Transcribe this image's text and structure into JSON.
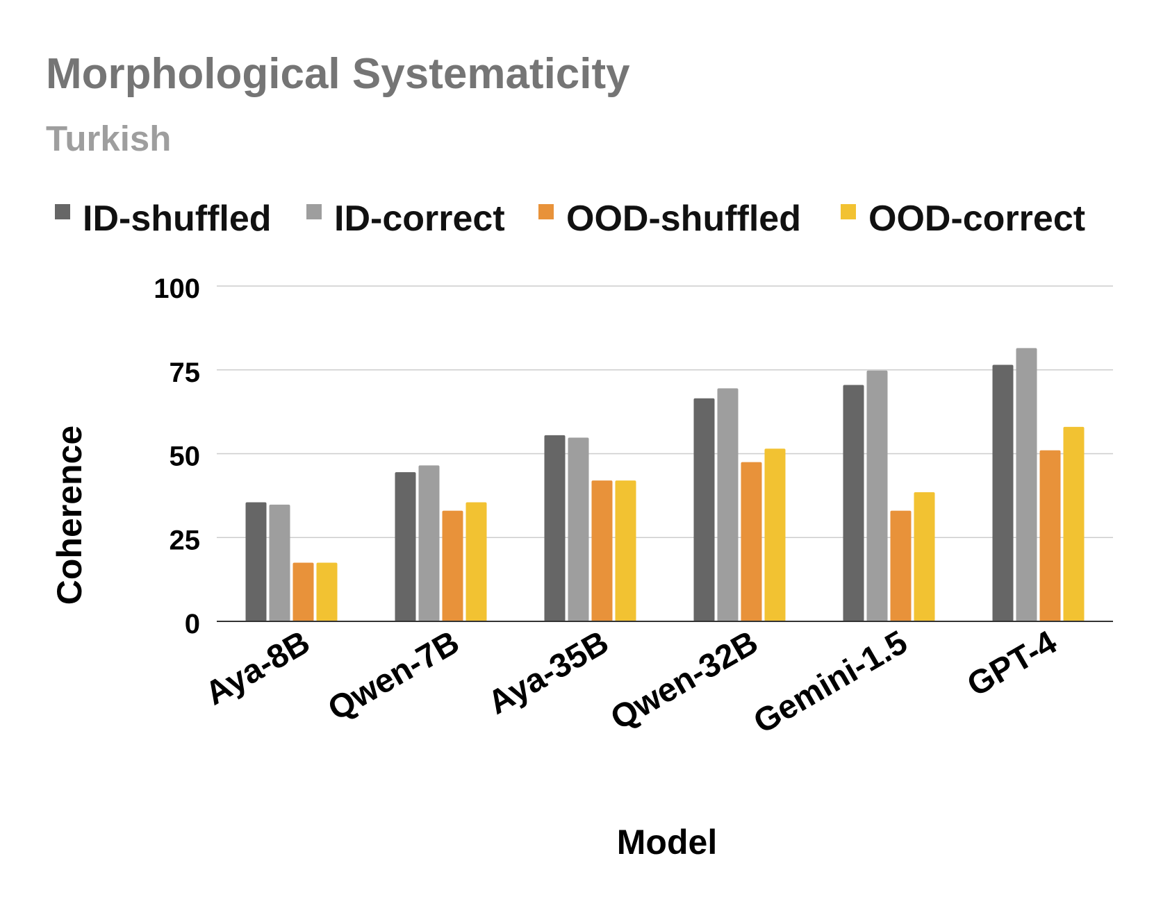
{
  "chart_data": {
    "type": "bar",
    "title": "Morphological Systematicity",
    "subtitle": "Turkish",
    "xlabel": "Model",
    "ylabel": "Coherence",
    "ylim": [
      0,
      100
    ],
    "yticks": [
      0,
      25,
      50,
      75,
      100
    ],
    "ytick_labels": [
      "0",
      "25",
      "50",
      "75",
      "100"
    ],
    "grid": true,
    "legend_position": "top",
    "categories": [
      "Aya-8B",
      "Qwen-7B",
      "Aya-35B",
      "Qwen-32B",
      "Gemini-1.5",
      "GPT-4"
    ],
    "series": [
      {
        "name": "ID-shuffled",
        "color": "#666666",
        "values": [
          35.5,
          44.5,
          55.5,
          66.5,
          70.5,
          76.5
        ]
      },
      {
        "name": "ID-correct",
        "color": "#9e9e9e",
        "values": [
          34.8,
          46.5,
          54.8,
          69.5,
          74.8,
          81.5
        ]
      },
      {
        "name": "OOD-shuffled",
        "color": "#e8923a",
        "values": [
          17.5,
          33,
          42,
          47.5,
          33,
          51
        ]
      },
      {
        "name": "OOD-correct",
        "color": "#f2c232",
        "values": [
          17.5,
          35.5,
          42,
          51.5,
          38.5,
          58
        ]
      }
    ]
  }
}
